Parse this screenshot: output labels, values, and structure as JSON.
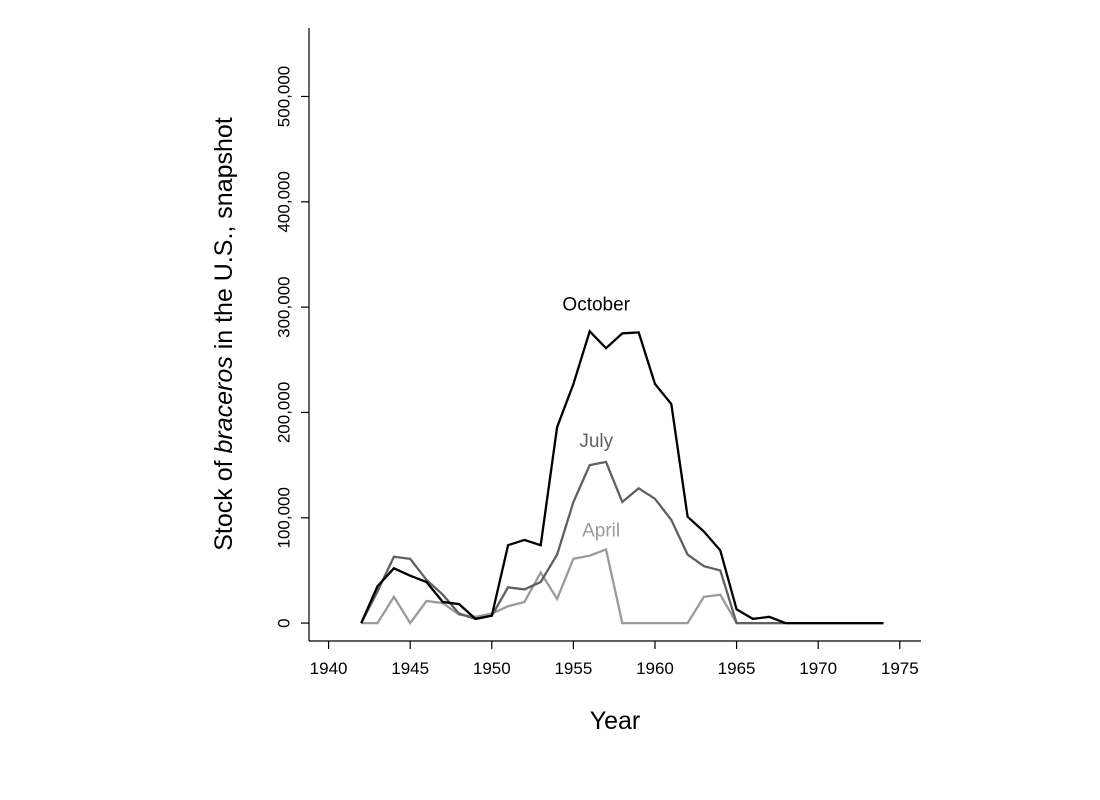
{
  "chart_data": {
    "type": "line",
    "xlabel": "Year",
    "ylabel_parts": [
      "Stock of ",
      "braceros",
      " in the U.S., snapshot"
    ],
    "xlim": [
      1938.8,
      1976.3
    ],
    "ylim": [
      -17000,
      565000
    ],
    "xticks": [
      {
        "value": 1940,
        "label": "1940"
      },
      {
        "value": 1945,
        "label": "1945"
      },
      {
        "value": 1950,
        "label": "1950"
      },
      {
        "value": 1955,
        "label": "1955"
      },
      {
        "value": 1960,
        "label": "1960"
      },
      {
        "value": 1965,
        "label": "1965"
      },
      {
        "value": 1970,
        "label": "1970"
      },
      {
        "value": 1975,
        "label": "1975"
      }
    ],
    "yticks": [
      {
        "value": 0,
        "label": "0"
      },
      {
        "value": 100000,
        "label": "100,000"
      },
      {
        "value": 200000,
        "label": "200,000"
      },
      {
        "value": 300000,
        "label": "300,000"
      },
      {
        "value": 400000,
        "label": "400,000"
      },
      {
        "value": 500000,
        "label": "500,000"
      }
    ],
    "grid": false,
    "x": [
      1942,
      1943,
      1944,
      1945,
      1946,
      1947,
      1948,
      1949,
      1950,
      1951,
      1952,
      1953,
      1954,
      1955,
      1956,
      1957,
      1958,
      1959,
      1960,
      1961,
      1962,
      1963,
      1964,
      1965,
      1966,
      1967,
      1968,
      1969,
      1970,
      1971,
      1972,
      1973,
      1974
    ],
    "series": [
      {
        "name": "October",
        "color": "#000000",
        "label_at": [
          1956.4,
          297000
        ],
        "values": [
          0,
          35000,
          52000,
          45000,
          39000,
          20000,
          18000,
          4000,
          7000,
          74000,
          79000,
          74000,
          186000,
          227000,
          277000,
          261000,
          275000,
          276000,
          227000,
          208000,
          101000,
          87000,
          69000,
          13000,
          4000,
          6000,
          0,
          0,
          0,
          0,
          0,
          0,
          0
        ]
      },
      {
        "name": "July",
        "color": "#606060",
        "label_at": [
          1956.4,
          167000
        ],
        "values": [
          0,
          30000,
          63000,
          61000,
          41000,
          27000,
          9000,
          4000,
          7000,
          34000,
          32000,
          39000,
          65000,
          115000,
          150000,
          153000,
          115000,
          128000,
          118000,
          98000,
          65000,
          54000,
          50000,
          0,
          0,
          0,
          0,
          0,
          0,
          0,
          0,
          0,
          0
        ]
      },
      {
        "name": "April",
        "color": "#9a9a9a",
        "label_at": [
          1956.7,
          82000
        ],
        "values": [
          0,
          0,
          25000,
          0,
          21000,
          19000,
          8000,
          6000,
          9000,
          16000,
          20000,
          48000,
          23000,
          61000,
          64000,
          70000,
          0,
          0,
          0,
          0,
          0,
          25000,
          27000,
          0,
          0,
          0,
          0,
          0,
          0,
          0,
          0,
          0,
          0
        ]
      }
    ]
  }
}
